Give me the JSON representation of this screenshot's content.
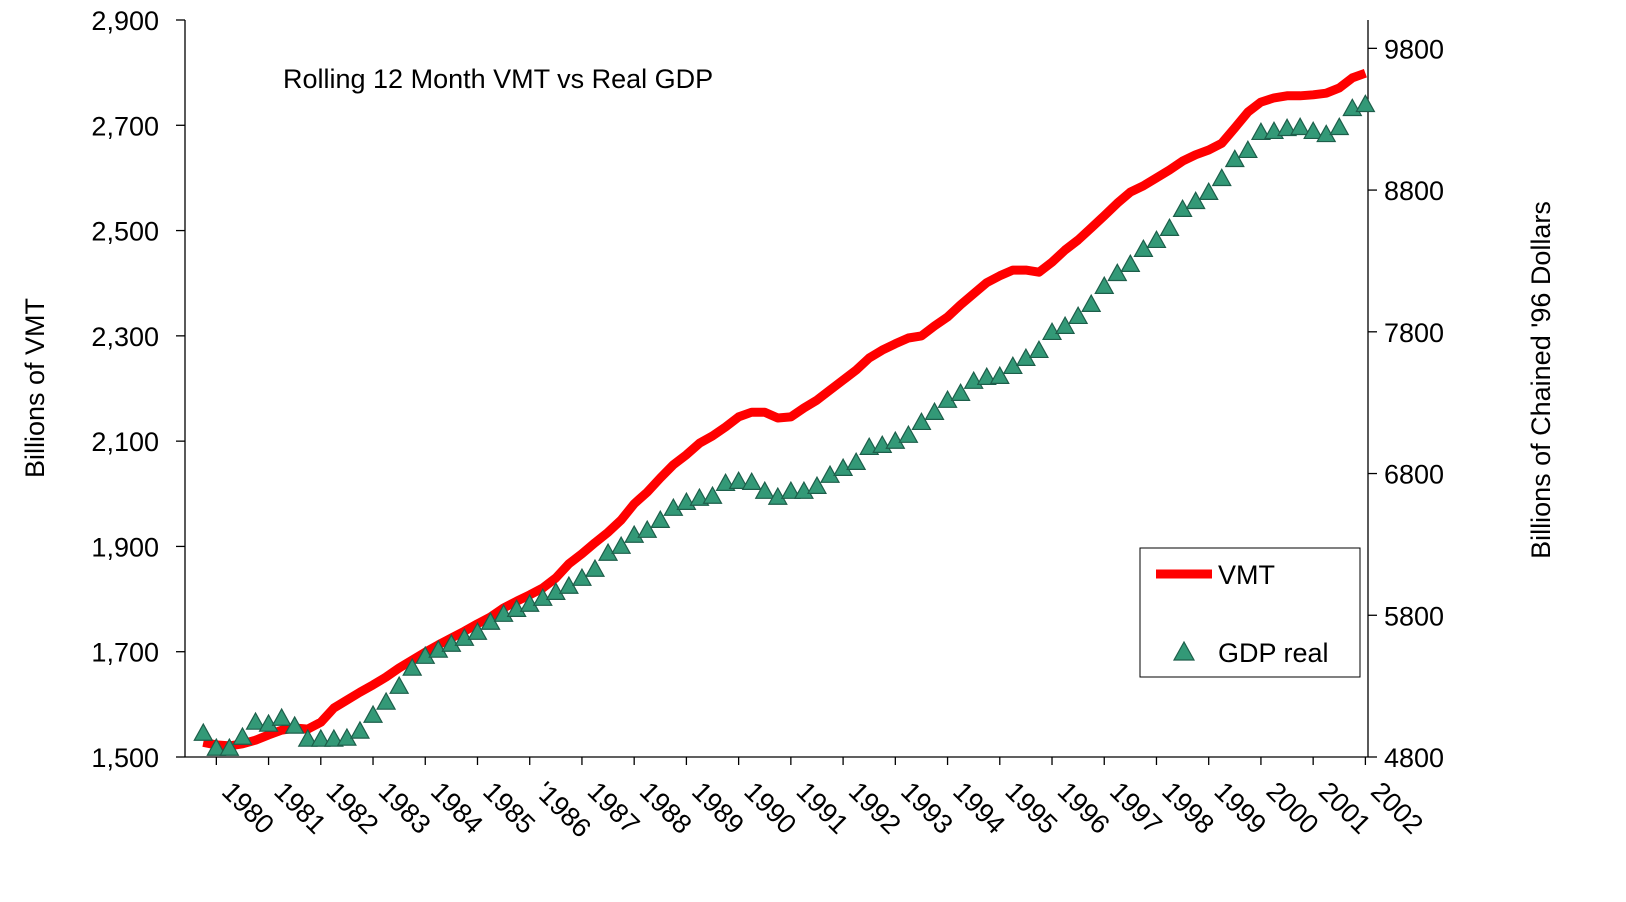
{
  "chart_data": {
    "type": "line",
    "title": "Rolling 12 Month VMT vs Real GDP",
    "y_label": "Billions of VMT",
    "y2_label": "Billions of Chained '96 Dollars",
    "x": [
      1979.75,
      1980,
      1980.25,
      1980.5,
      1980.75,
      1981,
      1981.25,
      1981.5,
      1981.75,
      1982,
      1982.25,
      1982.5,
      1982.75,
      1983,
      1983.25,
      1983.5,
      1983.75,
      1984,
      1984.25,
      1984.5,
      1984.75,
      1985,
      1985.25,
      1985.5,
      1985.75,
      1986,
      1986.25,
      1986.5,
      1986.75,
      1987,
      1987.25,
      1987.5,
      1987.75,
      1988,
      1988.25,
      1988.5,
      1988.75,
      1989,
      1989.25,
      1989.5,
      1989.75,
      1990,
      1990.25,
      1990.5,
      1990.75,
      1991,
      1991.25,
      1991.5,
      1991.75,
      1992,
      1992.25,
      1992.5,
      1992.75,
      1993,
      1993.25,
      1993.5,
      1993.75,
      1994,
      1994.25,
      1994.5,
      1994.75,
      1995,
      1995.25,
      1995.5,
      1995.75,
      1996,
      1996.25,
      1996.5,
      1996.75,
      1997,
      1997.25,
      1997.5,
      1997.75,
      1998,
      1998.25,
      1998.5,
      1998.75,
      1999,
      1999.25,
      1999.5,
      1999.75,
      2000,
      2000.25,
      2000.5,
      2000.75,
      2001,
      2001.25,
      2001.5,
      2001.75,
      2002
    ],
    "series": [
      {
        "name": "VMT",
        "type": "line",
        "color": "#ff0000",
        "values": [
          1528,
          1523,
          1521,
          1525,
          1532,
          1542,
          1551,
          1555,
          1553,
          1566,
          1593,
          1608,
          1623,
          1637,
          1652,
          1669,
          1684,
          1699,
          1713,
          1726,
          1739,
          1753,
          1766,
          1783,
          1796,
          1808,
          1821,
          1840,
          1867,
          1886,
          1907,
          1927,
          1950,
          1981,
          2003,
          2030,
          2055,
          2074,
          2096,
          2110,
          2127,
          2146,
          2155,
          2155,
          2144,
          2146,
          2163,
          2178,
          2197,
          2216,
          2235,
          2258,
          2273,
          2285,
          2296,
          2300,
          2319,
          2336,
          2359,
          2380,
          2401,
          2414,
          2425,
          2425,
          2421,
          2440,
          2463,
          2482,
          2505,
          2528,
          2552,
          2573,
          2585,
          2600,
          2615,
          2632,
          2644,
          2653,
          2666,
          2695,
          2725,
          2744,
          2752,
          2756,
          2756,
          2758,
          2761,
          2771,
          2790,
          2799
        ]
      },
      {
        "name": "GDP real",
        "type": "scatter",
        "marker": "triangle",
        "axis": "y2",
        "color": "#339977",
        "values": [
          4969,
          4863,
          4863,
          4941,
          5047,
          5033,
          5075,
          5019,
          4927,
          4927,
          4927,
          4934,
          4984,
          5096,
          5188,
          5300,
          5428,
          5512,
          5555,
          5597,
          5639,
          5681,
          5752,
          5808,
          5843,
          5879,
          5921,
          5963,
          6006,
          6062,
          6126,
          6239,
          6288,
          6366,
          6401,
          6471,
          6556,
          6598,
          6627,
          6641,
          6732,
          6746,
          6739,
          6676,
          6634,
          6676,
          6676,
          6711,
          6789,
          6838,
          6880,
          6986,
          7000,
          7029,
          7071,
          7162,
          7233,
          7318,
          7367,
          7452,
          7480,
          7487,
          7557,
          7614,
          7670,
          7797,
          7840,
          7910,
          7995,
          8122,
          8213,
          8277,
          8383,
          8446,
          8531,
          8665,
          8721,
          8785,
          8883,
          9017,
          9081,
          9208,
          9215,
          9236,
          9243,
          9215,
          9193,
          9243,
          9377,
          9405
        ]
      }
    ],
    "xlim": [
      1979.4,
      2002.05
    ],
    "xticks": [
      1980,
      1981,
      1982,
      1983,
      1984,
      1985,
      {
        "value": 1986,
        "label": "'1986"
      },
      1987,
      1988,
      1989,
      1990,
      1991,
      1992,
      1993,
      1994,
      1995,
      1996,
      1997,
      1998,
      1999,
      2000,
      2001,
      2002
    ],
    "ylim": [
      1500,
      2900
    ],
    "yticks": [
      {
        "value": 1500,
        "label": "1,500"
      },
      {
        "value": 1700,
        "label": "1,700"
      },
      {
        "value": 1900,
        "label": "1,900"
      },
      {
        "value": 2100,
        "label": "2,100"
      },
      {
        "value": 2300,
        "label": "2,300"
      },
      {
        "value": 2500,
        "label": "2,500"
      },
      {
        "value": 2700,
        "label": "2,700"
      },
      {
        "value": 2900,
        "label": "2,900"
      }
    ],
    "y2lim": [
      4800,
      10000
    ],
    "y2ticks": [
      4800,
      5800,
      6800,
      7800,
      8800,
      9800
    ],
    "grid": false,
    "legend": "right"
  }
}
